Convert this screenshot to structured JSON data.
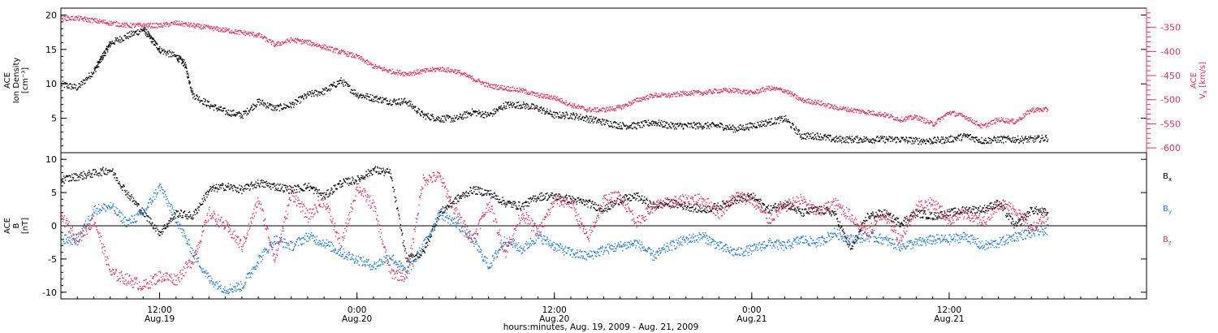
{
  "chart_data": [
    {
      "type": "scatter",
      "panel": "top",
      "x_range_hours": [
        6,
        72
      ],
      "ylabel_left": [
        "ACE",
        "Ion Density",
        "[cm⁻³]"
      ],
      "ylim_left": [
        0,
        21
      ],
      "yticks_left": [
        5,
        10,
        15,
        20
      ],
      "ylabel_right": [
        "ACE",
        "V",
        "x",
        "[km/s]"
      ],
      "ylim_right": [
        -610,
        -310
      ],
      "yticks_right": [
        -350,
        -400,
        -450,
        -500,
        -550,
        -600
      ],
      "series": [
        {
          "axis": "left",
          "color": "#000000",
          "x": [
            6.0,
            7.0,
            8.0,
            8.5,
            9.0,
            10.0,
            11.0,
            11.5,
            12.0,
            13.0,
            13.5,
            14.0,
            15.0,
            16.0,
            17.0,
            18.0,
            19.0,
            20.0,
            21.0,
            22.0,
            23.0,
            24.0,
            25.0,
            26.0,
            27.0,
            28.0,
            29.0,
            30.0,
            31.0,
            32.0,
            33.0,
            34.0,
            35.0,
            36.0,
            37.0,
            38.0,
            39.0,
            40.0,
            41.0,
            42.0,
            43.0,
            44.0,
            45.0,
            46.0,
            47.0,
            48.0,
            49.0,
            50.0,
            51.0,
            52.0,
            53.0,
            54.0,
            55.0,
            56.0,
            57.0,
            58.0,
            59.0,
            60.0,
            61.0,
            62.0,
            63.0,
            64.0,
            65.0,
            66.0
          ],
          "values": [
            10.0,
            9.5,
            12.0,
            14.0,
            16.0,
            17.0,
            18.0,
            16.5,
            15.0,
            14.0,
            13.0,
            8.5,
            7.0,
            6.0,
            5.5,
            7.5,
            6.5,
            7.0,
            8.5,
            9.0,
            10.5,
            8.5,
            8.0,
            7.5,
            7.5,
            5.5,
            5.0,
            5.0,
            6.0,
            5.5,
            7.0,
            7.0,
            6.5,
            5.5,
            5.5,
            5.0,
            4.5,
            4.0,
            4.0,
            4.5,
            4.0,
            4.0,
            4.0,
            4.0,
            3.5,
            4.0,
            4.5,
            5.0,
            2.5,
            2.5,
            2.0,
            2.0,
            2.0,
            2.0,
            2.0,
            1.8,
            1.8,
            2.0,
            2.5,
            1.8,
            2.0,
            2.0,
            2.0,
            2.2
          ]
        },
        {
          "axis": "right",
          "color": "#e8305e",
          "x": [
            6.0,
            7.0,
            8.0,
            9.0,
            10.0,
            11.0,
            12.0,
            13.0,
            14.0,
            15.0,
            16.0,
            17.0,
            18.0,
            19.0,
            20.0,
            21.0,
            22.0,
            23.0,
            24.0,
            25.0,
            26.0,
            27.0,
            28.0,
            29.0,
            30.0,
            31.0,
            32.0,
            33.0,
            34.0,
            35.0,
            36.0,
            37.0,
            38.0,
            39.0,
            40.0,
            41.0,
            42.0,
            43.0,
            44.0,
            45.0,
            46.0,
            47.0,
            48.0,
            49.0,
            50.0,
            51.0,
            52.0,
            53.0,
            54.0,
            55.0,
            56.0,
            57.0,
            58.0,
            59.0,
            60.0,
            61.0,
            62.0,
            63.0,
            64.0,
            65.0,
            66.0
          ],
          "values": [
            -330,
            -330,
            -335,
            -340,
            -345,
            -345,
            -345,
            -340,
            -345,
            -350,
            -355,
            -360,
            -365,
            -385,
            -375,
            -380,
            -390,
            -400,
            -410,
            -430,
            -440,
            -445,
            -440,
            -435,
            -440,
            -455,
            -470,
            -475,
            -480,
            -490,
            -495,
            -510,
            -520,
            -520,
            -515,
            -500,
            -490,
            -490,
            -485,
            -485,
            -480,
            -480,
            -485,
            -475,
            -480,
            -500,
            -505,
            -515,
            -520,
            -525,
            -530,
            -540,
            -535,
            -550,
            -525,
            -535,
            -555,
            -540,
            -545,
            -520,
            -520
          ]
        }
      ]
    },
    {
      "type": "scatter",
      "panel": "bottom",
      "x_range_hours": [
        6,
        72
      ],
      "ylabel_left": [
        "ACE",
        "B",
        "[nT]"
      ],
      "ylim_left": [
        -11,
        11
      ],
      "yticks_left": [
        10,
        5,
        0,
        -5,
        -10
      ],
      "legend": [
        {
          "label": "B",
          "sub": "x",
          "color": "#000000"
        },
        {
          "label": "B",
          "sub": "y",
          "color": "#1f7fd8"
        },
        {
          "label": "B",
          "sub": "z",
          "color": "#e8305e"
        }
      ],
      "series": [
        {
          "name": "Bx",
          "color": "#000000",
          "x": [
            6.0,
            7.0,
            8.0,
            9.0,
            10.0,
            11.0,
            12.0,
            13.0,
            14.0,
            15.0,
            16.0,
            17.0,
            18.0,
            19.0,
            20.0,
            21.0,
            22.0,
            23.0,
            24.0,
            25.0,
            26.0,
            27.0,
            28.0,
            29.0,
            30.0,
            31.0,
            32.0,
            33.0,
            34.0,
            35.0,
            36.0,
            37.0,
            38.0,
            39.0,
            40.0,
            41.0,
            42.0,
            43.0,
            44.0,
            45.0,
            46.0,
            47.0,
            48.0,
            49.0,
            50.0,
            51.0,
            52.0,
            53.0,
            54.0,
            55.0,
            56.0,
            57.0,
            58.0,
            59.0,
            60.0,
            61.0,
            62.0,
            63.0,
            64.0,
            65.0,
            66.0
          ],
          "values": [
            7.0,
            7.5,
            8.0,
            8.5,
            5.0,
            2.0,
            -1.0,
            2.0,
            1.5,
            5.5,
            6.0,
            5.5,
            6.5,
            6.0,
            5.5,
            6.0,
            4.5,
            6.5,
            7.0,
            8.5,
            8.0,
            -5.0,
            -4.0,
            2.0,
            4.0,
            5.5,
            5.0,
            3.5,
            3.0,
            4.5,
            4.5,
            4.0,
            3.5,
            2.5,
            4.0,
            4.5,
            3.0,
            3.5,
            3.0,
            2.5,
            3.0,
            4.0,
            4.5,
            2.5,
            3.5,
            2.0,
            2.5,
            2.0,
            -3.5,
            1.5,
            2.0,
            0.5,
            2.0,
            1.5,
            2.0,
            2.5,
            2.5,
            3.5,
            0.0,
            2.5,
            2.0
          ]
        },
        {
          "name": "By",
          "color": "#1f7fd8",
          "x": [
            6.0,
            7.0,
            8.0,
            9.0,
            10.0,
            11.0,
            12.0,
            13.0,
            14.0,
            15.0,
            16.0,
            17.0,
            18.0,
            19.0,
            20.0,
            21.0,
            22.0,
            23.0,
            24.0,
            25.0,
            26.0,
            27.0,
            28.0,
            29.0,
            30.0,
            31.0,
            32.0,
            33.0,
            34.0,
            35.0,
            36.0,
            37.0,
            38.0,
            39.0,
            40.0,
            41.0,
            42.0,
            43.0,
            44.0,
            45.0,
            46.0,
            47.0,
            48.0,
            49.0,
            50.0,
            51.0,
            52.0,
            53.0,
            54.0,
            55.0,
            56.0,
            57.0,
            58.0,
            59.0,
            60.0,
            61.0,
            62.0,
            63.0,
            64.0,
            65.0,
            66.0
          ],
          "values": [
            -2.0,
            -2.0,
            2.5,
            3.0,
            0.5,
            2.0,
            6.0,
            1.0,
            -4.0,
            -8.0,
            -9.5,
            -9.0,
            -5.0,
            -2.0,
            -3.0,
            -1.5,
            -2.5,
            -4.0,
            -5.0,
            -6.0,
            -4.5,
            -7.0,
            -3.0,
            2.0,
            0.5,
            -2.0,
            -6.0,
            -2.0,
            -3.5,
            -1.5,
            -3.0,
            -4.0,
            -4.5,
            -3.5,
            -3.0,
            -2.5,
            -4.5,
            -3.0,
            -2.0,
            -1.5,
            -3.0,
            -4.0,
            -3.5,
            -2.5,
            -3.0,
            -2.0,
            -2.5,
            -1.0,
            -2.0,
            -1.5,
            -2.0,
            -3.0,
            -2.5,
            -2.0,
            -2.0,
            -1.5,
            -3.0,
            -2.5,
            -1.5,
            -1.0,
            -0.5
          ]
        },
        {
          "name": "Bz",
          "color": "#e8305e",
          "x": [
            6.0,
            7.0,
            8.0,
            9.0,
            10.0,
            11.0,
            12.0,
            13.0,
            14.0,
            15.0,
            16.0,
            17.0,
            18.0,
            19.0,
            20.0,
            21.0,
            22.0,
            23.0,
            24.0,
            25.0,
            26.0,
            27.0,
            28.0,
            29.0,
            30.0,
            31.0,
            32.0,
            33.0,
            34.0,
            35.0,
            36.0,
            37.0,
            38.0,
            39.0,
            40.0,
            41.0,
            42.0,
            43.0,
            44.0,
            45.0,
            46.0,
            47.0,
            48.0,
            49.0,
            50.0,
            51.0,
            52.0,
            53.0,
            54.0,
            55.0,
            56.0,
            57.0,
            58.0,
            59.0,
            60.0,
            61.0,
            62.0,
            63.0,
            64.0,
            65.0,
            66.0
          ],
          "values": [
            1.5,
            -2.0,
            1.0,
            -7.0,
            -8.0,
            -9.0,
            -7.5,
            -8.0,
            -5.0,
            2.0,
            0.0,
            -3.0,
            4.0,
            -5.0,
            5.0,
            1.5,
            4.0,
            -3.0,
            6.0,
            3.0,
            -7.0,
            -7.5,
            7.0,
            7.5,
            2.0,
            -2.0,
            3.5,
            -4.0,
            2.0,
            -1.0,
            4.0,
            3.5,
            -2.0,
            4.0,
            4.5,
            0.5,
            3.0,
            3.5,
            4.0,
            4.0,
            2.0,
            4.5,
            4.0,
            1.0,
            3.0,
            4.0,
            2.0,
            3.5,
            1.5,
            -1.0,
            2.0,
            -2.0,
            3.0,
            3.5,
            1.0,
            2.0,
            0.5,
            3.5,
            2.5,
            -0.5,
            1.5
          ]
        }
      ]
    }
  ],
  "x_axis": {
    "range_hours": [
      6,
      72
    ],
    "ticks": [
      {
        "hour": 12,
        "time": "12:00",
        "date": "Aug.19"
      },
      {
        "hour": 24,
        "time": "0:00",
        "date": "Aug.20"
      },
      {
        "hour": 36,
        "time": "12:00",
        "date": "Aug.20"
      },
      {
        "hour": 48,
        "time": "0:00",
        "date": "Aug.21"
      },
      {
        "hour": 60,
        "time": "12:00",
        "date": "Aug.21"
      }
    ],
    "label": "hours:minutes, Aug. 19, 2009 - Aug. 21, 2009"
  }
}
